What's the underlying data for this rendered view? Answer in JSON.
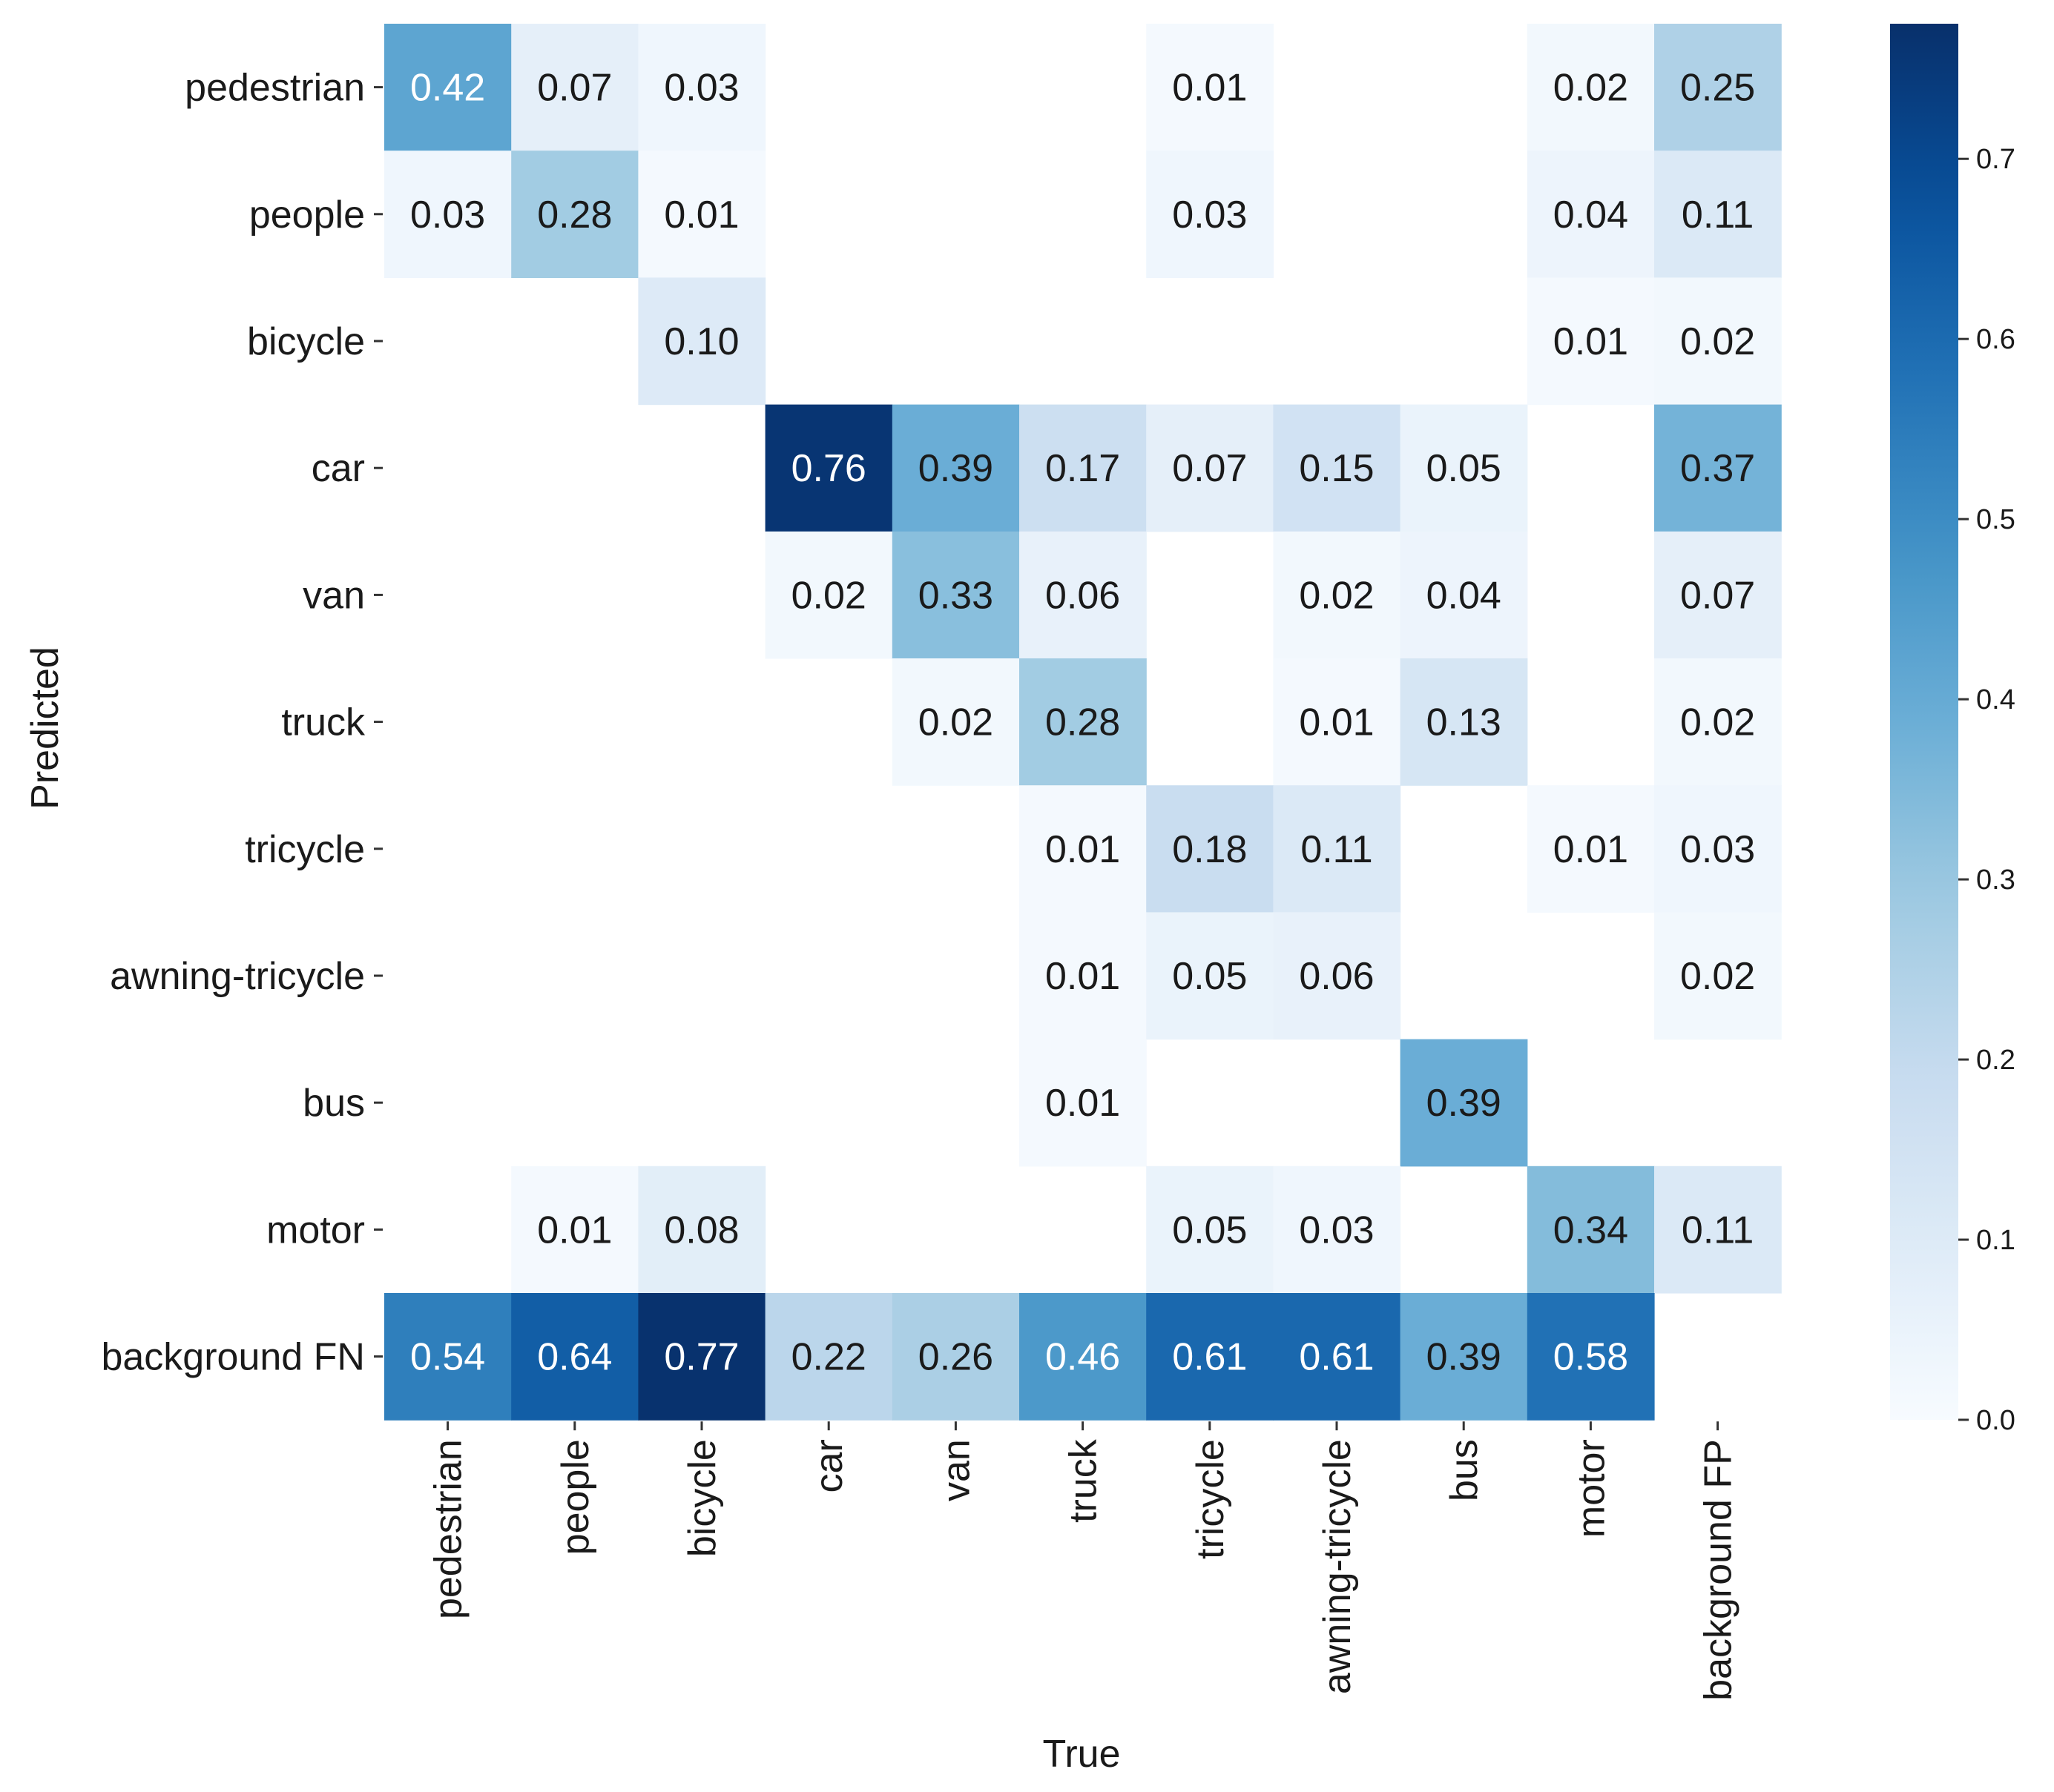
{
  "chart_data": {
    "type": "heatmap",
    "title": "",
    "xlabel": "True",
    "ylabel": "Predicted",
    "x_categories": [
      "pedestrian",
      "people",
      "bicycle",
      "car",
      "van",
      "truck",
      "tricycle",
      "awning-tricycle",
      "bus",
      "motor",
      "background FP"
    ],
    "y_categories": [
      "pedestrian",
      "people",
      "bicycle",
      "car",
      "van",
      "truck",
      "tricycle",
      "awning-tricycle",
      "bus",
      "motor",
      "background FN"
    ],
    "values": [
      [
        0.42,
        0.07,
        0.03,
        null,
        null,
        null,
        0.01,
        null,
        null,
        0.02,
        0.25
      ],
      [
        0.03,
        0.28,
        0.01,
        null,
        null,
        null,
        0.03,
        null,
        null,
        0.04,
        0.11
      ],
      [
        null,
        null,
        0.1,
        null,
        null,
        null,
        null,
        null,
        null,
        0.01,
        0.02
      ],
      [
        null,
        null,
        null,
        0.76,
        0.39,
        0.17,
        0.07,
        0.15,
        0.05,
        null,
        0.37
      ],
      [
        null,
        null,
        null,
        0.02,
        0.33,
        0.06,
        null,
        0.02,
        0.04,
        null,
        0.07
      ],
      [
        null,
        null,
        null,
        null,
        0.02,
        0.28,
        null,
        0.01,
        0.13,
        null,
        0.02
      ],
      [
        null,
        null,
        null,
        null,
        null,
        0.01,
        0.18,
        0.11,
        null,
        0.01,
        0.03
      ],
      [
        null,
        null,
        null,
        null,
        null,
        0.01,
        0.05,
        0.06,
        null,
        null,
        0.02
      ],
      [
        null,
        null,
        null,
        null,
        null,
        0.01,
        null,
        null,
        0.39,
        null,
        null
      ],
      [
        null,
        0.01,
        0.08,
        null,
        null,
        null,
        0.05,
        0.03,
        null,
        0.34,
        0.11
      ],
      [
        0.54,
        0.64,
        0.77,
        0.22,
        0.26,
        0.46,
        0.61,
        0.61,
        0.39,
        0.58,
        null
      ]
    ],
    "colormap": "Blues",
    "colorbar": {
      "vmin": 0.0,
      "vmax": 0.775,
      "ticks": [
        0.0,
        0.1,
        0.2,
        0.3,
        0.4,
        0.5,
        0.6,
        0.7
      ],
      "tick_labels": [
        "0.0",
        "0.1",
        "0.2",
        "0.3",
        "0.4",
        "0.5",
        "0.6",
        "0.7"
      ]
    },
    "grid": false,
    "legend": "colorbar-right"
  }
}
